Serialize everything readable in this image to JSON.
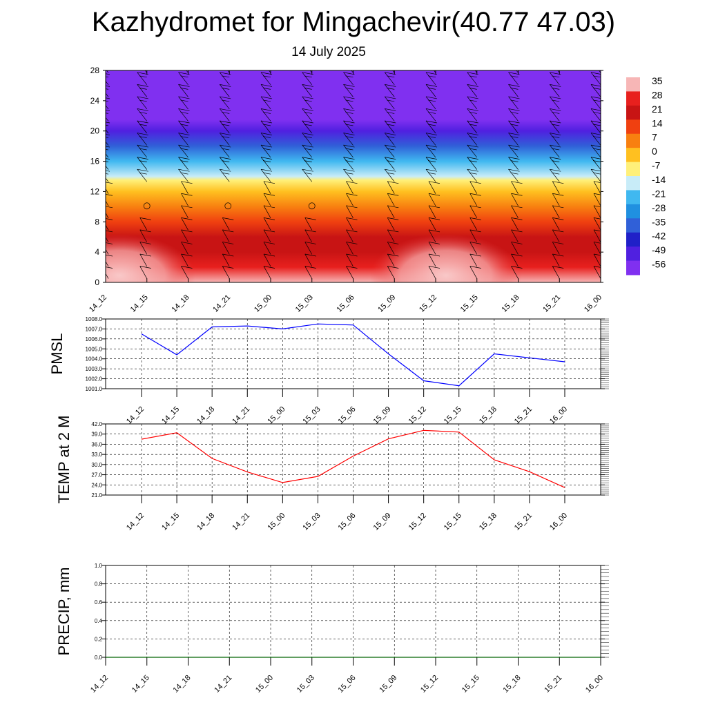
{
  "title": "Kazhydromet for Mingachevir(40.77 47.03)",
  "subtitle": "14 July 2025",
  "colors": {
    "pmsl_line": "#0000ff",
    "temp_line": "#ff0000",
    "precip_line": "#006400",
    "grid": "#000000"
  },
  "chart_data": [
    {
      "type": "heatmap",
      "name": "upper-air-temperature-cross-section",
      "x": [
        "14_12",
        "14_15",
        "14_18",
        "14_21",
        "15_00",
        "15_03",
        "15_06",
        "15_09",
        "15_12",
        "15_15",
        "15_18",
        "15_21",
        "16_00"
      ],
      "yticks": [
        0,
        4,
        8,
        12,
        16,
        20,
        24,
        28
      ],
      "ylim": [
        0,
        28
      ],
      "colorbar_levels": [
        35,
        28,
        21,
        14,
        7,
        0,
        -7,
        -14,
        -21,
        -28,
        -35,
        -42,
        -49,
        -56
      ],
      "colorbar_colors": [
        "#f7b6b6",
        "#e8201e",
        "#c81414",
        "#f04010",
        "#f88010",
        "#ffc020",
        "#fff07a",
        "#c8ecf8",
        "#40b8f0",
        "#2090e0",
        "#3060d8",
        "#2020c8",
        "#5020e0",
        "#8030f0"
      ],
      "values_by_height": [
        {
          "height": 0,
          "temp": 35
        },
        {
          "height": 2,
          "temp": 30
        },
        {
          "height": 4,
          "temp": 25
        },
        {
          "height": 6,
          "temp": 21
        },
        {
          "height": 8,
          "temp": 14
        },
        {
          "height": 10,
          "temp": 7
        },
        {
          "height": 12,
          "temp": 0
        },
        {
          "height": 13.5,
          "temp": -7
        },
        {
          "height": 14,
          "temp": -14
        },
        {
          "height": 16,
          "temp": -21
        },
        {
          "height": 18,
          "temp": -35
        },
        {
          "height": 20,
          "temp": -49
        },
        {
          "height": 21.5,
          "temp": -56
        },
        {
          "height": 24,
          "temp": -56
        },
        {
          "height": 28,
          "temp": -56
        }
      ],
      "wind_barbs": true
    },
    {
      "type": "line",
      "ylabel": "PMSL",
      "x": [
        "14_12",
        "14_15",
        "14_18",
        "14_21",
        "15_00",
        "15_03",
        "15_06",
        "15_09",
        "15_12",
        "15_15",
        "15_18",
        "15_21",
        "16_00"
      ],
      "yticks": [
        "1001.0",
        "1002.0",
        "1003.0",
        "1004.0",
        "1005.0",
        "1006.0",
        "1007.0",
        "1008.0"
      ],
      "ylim": [
        1001,
        1008
      ],
      "series": [
        {
          "values": [
            1006.5,
            1004.4,
            1007.2,
            1007.3,
            1007.0,
            1007.5,
            1007.4,
            1004.5,
            1001.8,
            1001.3,
            1004.5,
            1004.1,
            1003.7
          ]
        }
      ],
      "grid": true
    },
    {
      "type": "line",
      "ylabel": "TEMP at 2 M",
      "x": [
        "14_12",
        "14_15",
        "14_18",
        "14_21",
        "15_00",
        "15_03",
        "15_06",
        "15_09",
        "15_12",
        "15_15",
        "15_18",
        "15_21",
        "16_00"
      ],
      "yticks": [
        "21.0",
        "24.0",
        "27.0",
        "30.0",
        "33.0",
        "36.0",
        "39.0",
        "42.0"
      ],
      "ylim": [
        21,
        42
      ],
      "series": [
        {
          "values": [
            37.5,
            39.4,
            31.8,
            27.8,
            24.7,
            26.5,
            32.5,
            37.6,
            40.1,
            39.6,
            31.4,
            27.9,
            23.2
          ]
        }
      ],
      "grid": true
    },
    {
      "type": "line",
      "ylabel": "PRECIP, mm",
      "x": [
        "14_12",
        "14_15",
        "14_18",
        "14_21",
        "15_00",
        "15_03",
        "15_06",
        "15_09",
        "15_12",
        "15_15",
        "15_18",
        "15_21",
        "16_00"
      ],
      "yticks": [
        "0.0",
        "0.2",
        "0.4",
        "0.6",
        "0.8",
        "1.0"
      ],
      "ylim": [
        0,
        1
      ],
      "series": [
        {
          "values": [
            0,
            0,
            0,
            0,
            0,
            0,
            0,
            0,
            0,
            0,
            0,
            0,
            0
          ]
        }
      ],
      "grid": true
    }
  ]
}
